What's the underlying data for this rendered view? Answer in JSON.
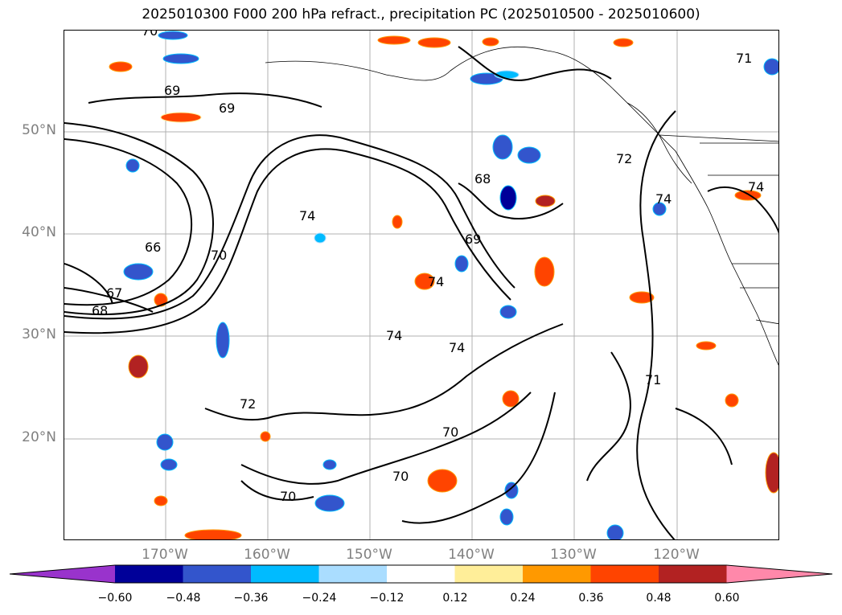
{
  "title": "2025010300 F000 200 hPa refract., precipitation PC (2025010500 - 2025010600)",
  "lat_labels": [
    "50°N",
    "40°N",
    "30°N",
    "20°N"
  ],
  "lon_labels": [
    "170°W",
    "160°W",
    "150°W",
    "140°W",
    "130°W",
    "120°W"
  ],
  "contour_labels": [
    "70",
    "69",
    "69",
    "66",
    "67",
    "68",
    "70",
    "74",
    "68",
    "69",
    "74",
    "74",
    "74",
    "72",
    "70",
    "70",
    "70",
    "71",
    "74",
    "74",
    "72",
    "71"
  ],
  "colorbar": {
    "tick_labels": [
      "−0.60",
      "−0.48",
      "−0.36",
      "−0.24",
      "−0.12",
      "0.12",
      "0.24",
      "0.36",
      "0.48",
      "0.60"
    ],
    "colors": [
      "#9933cc",
      "#000099",
      "#3355cc",
      "#00bbff",
      "#aaddff",
      "#ffffff",
      "#ffee99",
      "#ff9900",
      "#ff4400",
      "#b22222",
      "#ff88aa"
    ]
  }
}
